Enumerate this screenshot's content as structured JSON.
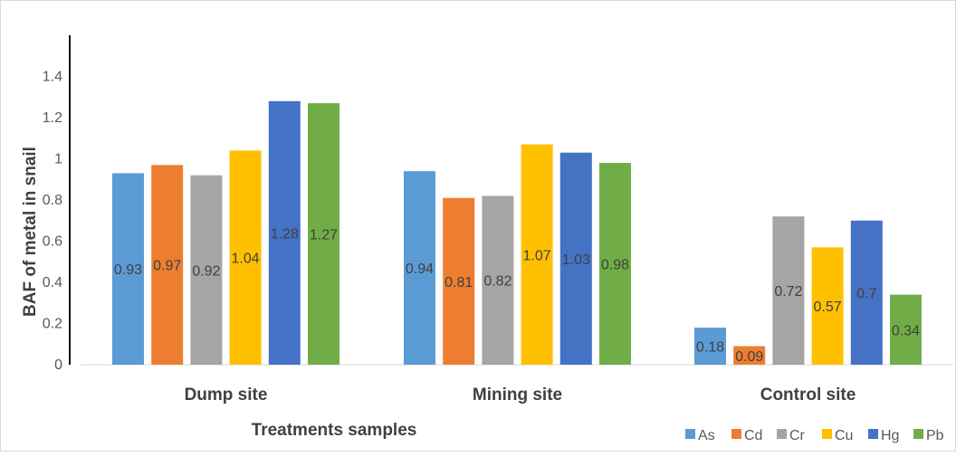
{
  "chart_data": {
    "type": "bar",
    "title": "",
    "xlabel": "Treatments samples",
    "ylabel": "BAF of metal in snail",
    "categories": [
      "Dump site",
      "Mining site",
      "Control site"
    ],
    "ylim": [
      0,
      1.6
    ],
    "yticks": [
      "0",
      "0.2",
      "0.4",
      "0.6",
      "0.8",
      "1",
      "1.2",
      "1.4"
    ],
    "ytick_values": [
      0,
      0.2,
      0.4,
      0.6,
      0.8,
      1.0,
      1.2,
      1.4
    ],
    "grid": false,
    "legend_position": "bottom-right",
    "series": [
      {
        "name": "As",
        "color": "#5b9bd5",
        "values": [
          0.93,
          0.94,
          0.18
        ],
        "labels": [
          "0.93",
          "0.94",
          "0.18"
        ]
      },
      {
        "name": "Cd",
        "color": "#ed7d31",
        "values": [
          0.97,
          0.81,
          0.09
        ],
        "labels": [
          "0.97",
          "0.81",
          "0.09"
        ]
      },
      {
        "name": "Cr",
        "color": "#a5a5a5",
        "values": [
          0.92,
          0.82,
          0.72
        ],
        "labels": [
          "0.92",
          "0.82",
          "0.72"
        ]
      },
      {
        "name": "Cu",
        "color": "#ffc000",
        "values": [
          1.04,
          1.07,
          0.57
        ],
        "labels": [
          "1.04",
          "1.07",
          "0.57"
        ]
      },
      {
        "name": "Hg",
        "color": "#4472c4",
        "values": [
          1.28,
          1.03,
          0.7
        ],
        "labels": [
          "1.28",
          "1.03",
          "0.7"
        ]
      },
      {
        "name": "Pb",
        "color": "#70ad47",
        "values": [
          1.27,
          0.98,
          0.34
        ],
        "labels": [
          "1.27",
          "0.98",
          "0.34"
        ]
      }
    ]
  }
}
